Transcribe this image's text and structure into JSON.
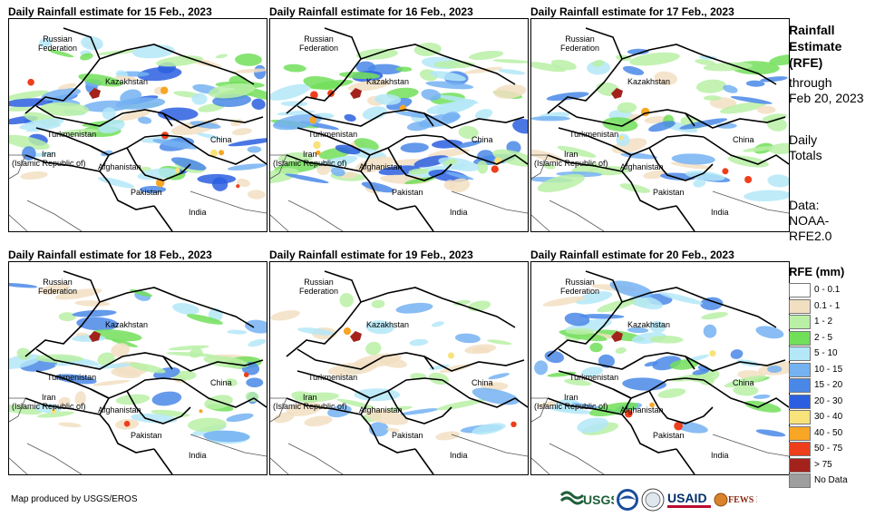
{
  "panels": [
    {
      "title": "Daily Rainfall estimate for 15 Feb., 2023",
      "intensity": "high"
    },
    {
      "title": "Daily Rainfall estimate for 16 Feb., 2023",
      "intensity": "high"
    },
    {
      "title": "Daily Rainfall estimate for 17 Feb., 2023",
      "intensity": "medium"
    },
    {
      "title": "Daily Rainfall estimate for 18 Feb., 2023",
      "intensity": "medium"
    },
    {
      "title": "Daily Rainfall estimate for 19 Feb., 2023",
      "intensity": "low"
    },
    {
      "title": "Daily Rainfall estimate for 20 Feb., 2023",
      "intensity": "medium"
    }
  ],
  "map_labels": {
    "russia": "Russian\nFederation",
    "kazakhstan": "Kazakhstan",
    "turkmenistan": "Turkmenistan",
    "iran": "Iran\n(Islamic Republic of)",
    "afghanistan": "Afghanistan",
    "pakistan": "Pakistan",
    "china": "China",
    "india": "India"
  },
  "sidebar": {
    "title_line1": "Rainfall",
    "title_line2": "Estimate",
    "title_line3": "(RFE)",
    "through": "through",
    "date": "Feb 20, 2023",
    "daily": "Daily",
    "totals": "Totals",
    "data": "Data:",
    "source1": "NOAA-",
    "source2": "RFE2.0"
  },
  "legend": {
    "title": "RFE (mm)",
    "items": [
      {
        "label": "0 - 0.1",
        "color": "#ffffff"
      },
      {
        "label": "0.1 - 1",
        "color": "#f2dfc2"
      },
      {
        "label": "1 - 2",
        "color": "#b9f0a6"
      },
      {
        "label": "2 - 5",
        "color": "#72df5a"
      },
      {
        "label": "5 - 10",
        "color": "#b4e8f8"
      },
      {
        "label": "10 - 15",
        "color": "#74b2f2"
      },
      {
        "label": "15 - 20",
        "color": "#4a88e8"
      },
      {
        "label": "20 - 30",
        "color": "#2b5fe0"
      },
      {
        "label": "30 - 40",
        "color": "#f8e27a"
      },
      {
        "label": "40 - 50",
        "color": "#f7a626"
      },
      {
        "label": "50 - 75",
        "color": "#ef3e1c"
      },
      {
        "label": "> 75",
        "color": "#a3221c"
      },
      {
        "label": "No Data",
        "color": "#9e9e9e"
      }
    ]
  },
  "credit": "Map produced by USGS/EROS",
  "logos": {
    "usgs": "USGS",
    "usaid": "USAID",
    "fewsnet": "FEWS NET"
  }
}
